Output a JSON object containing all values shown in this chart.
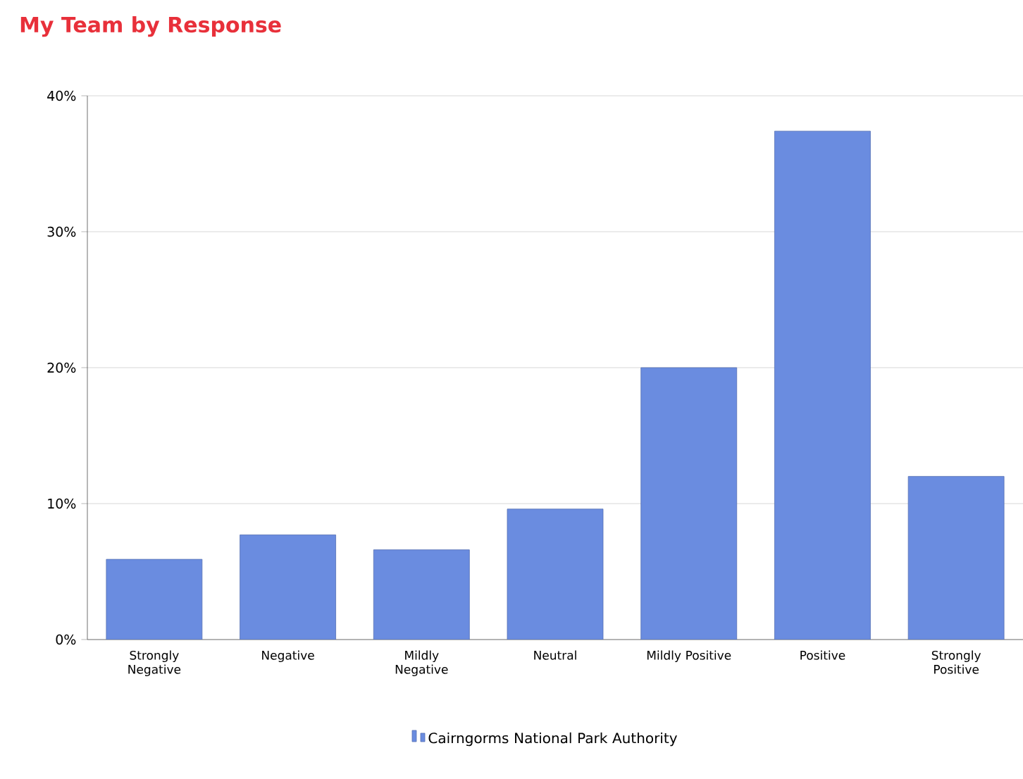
{
  "chart_data": {
    "type": "bar",
    "title": "My Team by Response",
    "categories": [
      "Strongly Negative",
      "Negative",
      "Mildly Negative",
      "Neutral",
      "Mildly Positive",
      "Positive",
      "Strongly Positive"
    ],
    "series": [
      {
        "name": "Cairngorms National Park Authority",
        "color": "#6a8ce0",
        "values": [
          5.9,
          7.7,
          6.6,
          9.6,
          20.0,
          37.4,
          12.0
        ]
      }
    ],
    "ylim": [
      0,
      40
    ],
    "yticks": [
      {
        "value": 0,
        "label": "0%"
      },
      {
        "value": 10,
        "label": "10%"
      },
      {
        "value": 20,
        "label": "20%"
      },
      {
        "value": 30,
        "label": "30%"
      },
      {
        "value": 40,
        "label": "40%"
      }
    ],
    "grid": "y",
    "legend": "bottom"
  }
}
